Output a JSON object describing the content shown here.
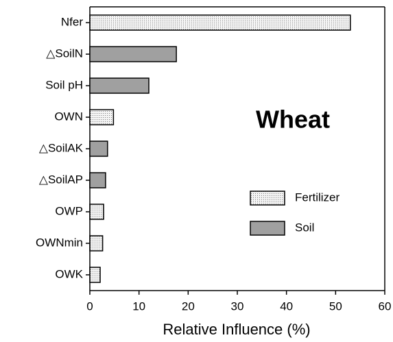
{
  "chart_data": {
    "type": "barh",
    "annotation": "Wheat",
    "x_label": "Relative Influence (%)",
    "categories": [
      "Nfer",
      "△SoilN",
      "Soil pH",
      "OWN",
      "△SoilAK",
      "△SoilAP",
      "OWP",
      "OWNmin",
      "OWK"
    ],
    "series": [
      {
        "name": "Fertilizer",
        "color": "#f4f4f4",
        "pattern": "dots",
        "values": [
          53,
          null,
          null,
          4.8,
          null,
          null,
          2.8,
          2.6,
          2.1
        ]
      },
      {
        "name": "Soil",
        "color": "#a0a0a0",
        "pattern": "solid",
        "values": [
          null,
          17.6,
          12,
          null,
          3.6,
          3.2,
          null,
          null,
          null
        ]
      }
    ],
    "xlim": [
      0,
      60
    ],
    "xticks": [
      0,
      10,
      20,
      30,
      40,
      50,
      60
    ],
    "grid": false
  }
}
